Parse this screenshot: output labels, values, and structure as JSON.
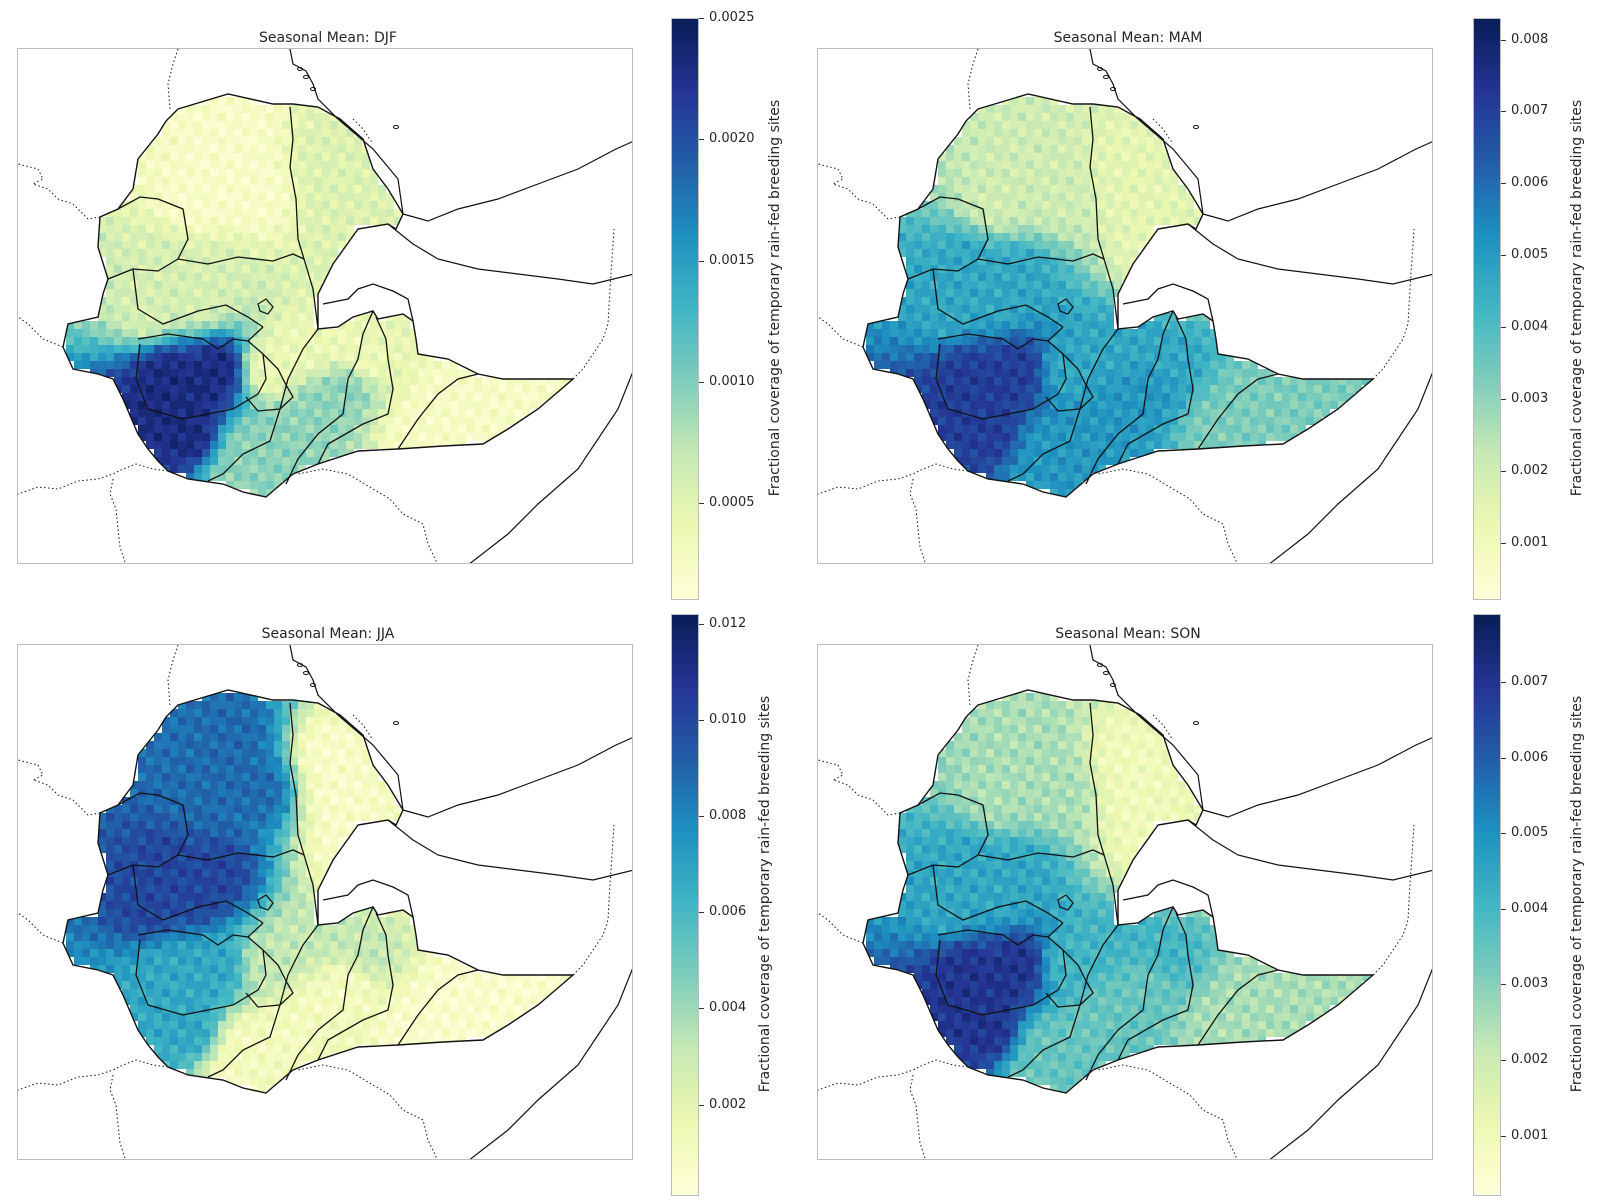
{
  "colormap": [
    "#ffffd9",
    "#edf8b1",
    "#c7e9b4",
    "#7fcdbb",
    "#41b6c4",
    "#1d91c0",
    "#225ea8",
    "#253494",
    "#081d58"
  ],
  "colorbar_label": "Fractional coverage of temporary rain-fed breeding sites",
  "panels": [
    {
      "title": "Seasonal Mean: DJF",
      "vmin": 0.0001,
      "vmax": 0.0025,
      "ticks": [
        "0.0005",
        "0.0010",
        "0.0015",
        "0.0020",
        "0.0025"
      ],
      "intensity": {
        "north": 0.05,
        "east_strip": 0.18,
        "west_central": 0.2,
        "southwest": 0.92,
        "south": 0.35,
        "east": 0.06,
        "center": 0.12
      }
    },
    {
      "title": "Seasonal Mean: MAM",
      "vmin": 0.0002,
      "vmax": 0.0083,
      "ticks": [
        "0.001",
        "0.002",
        "0.003",
        "0.004",
        "0.005",
        "0.006",
        "0.007",
        "0.008"
      ],
      "intensity": {
        "north": 0.22,
        "east_strip": 0.15,
        "west_central": 0.55,
        "southwest": 0.85,
        "south": 0.6,
        "east": 0.38,
        "center": 0.55
      }
    },
    {
      "title": "Seasonal Mean: JJA",
      "vmin": 0.0001,
      "vmax": 0.0122,
      "ticks": [
        "0.002",
        "0.004",
        "0.006",
        "0.008",
        "0.010",
        "0.012"
      ],
      "intensity": {
        "north": 0.72,
        "east_strip": 0.05,
        "west_central": 0.82,
        "southwest": 0.55,
        "south": 0.08,
        "east": 0.04,
        "center": 0.25
      }
    },
    {
      "title": "Seasonal Mean: SON",
      "vmin": 0.0002,
      "vmax": 0.0079,
      "ticks": [
        "0.001",
        "0.002",
        "0.003",
        "0.004",
        "0.005",
        "0.006",
        "0.007"
      ],
      "intensity": {
        "north": 0.3,
        "east_strip": 0.1,
        "west_central": 0.55,
        "southwest": 0.88,
        "south": 0.42,
        "east": 0.3,
        "center": 0.5
      }
    }
  ]
}
